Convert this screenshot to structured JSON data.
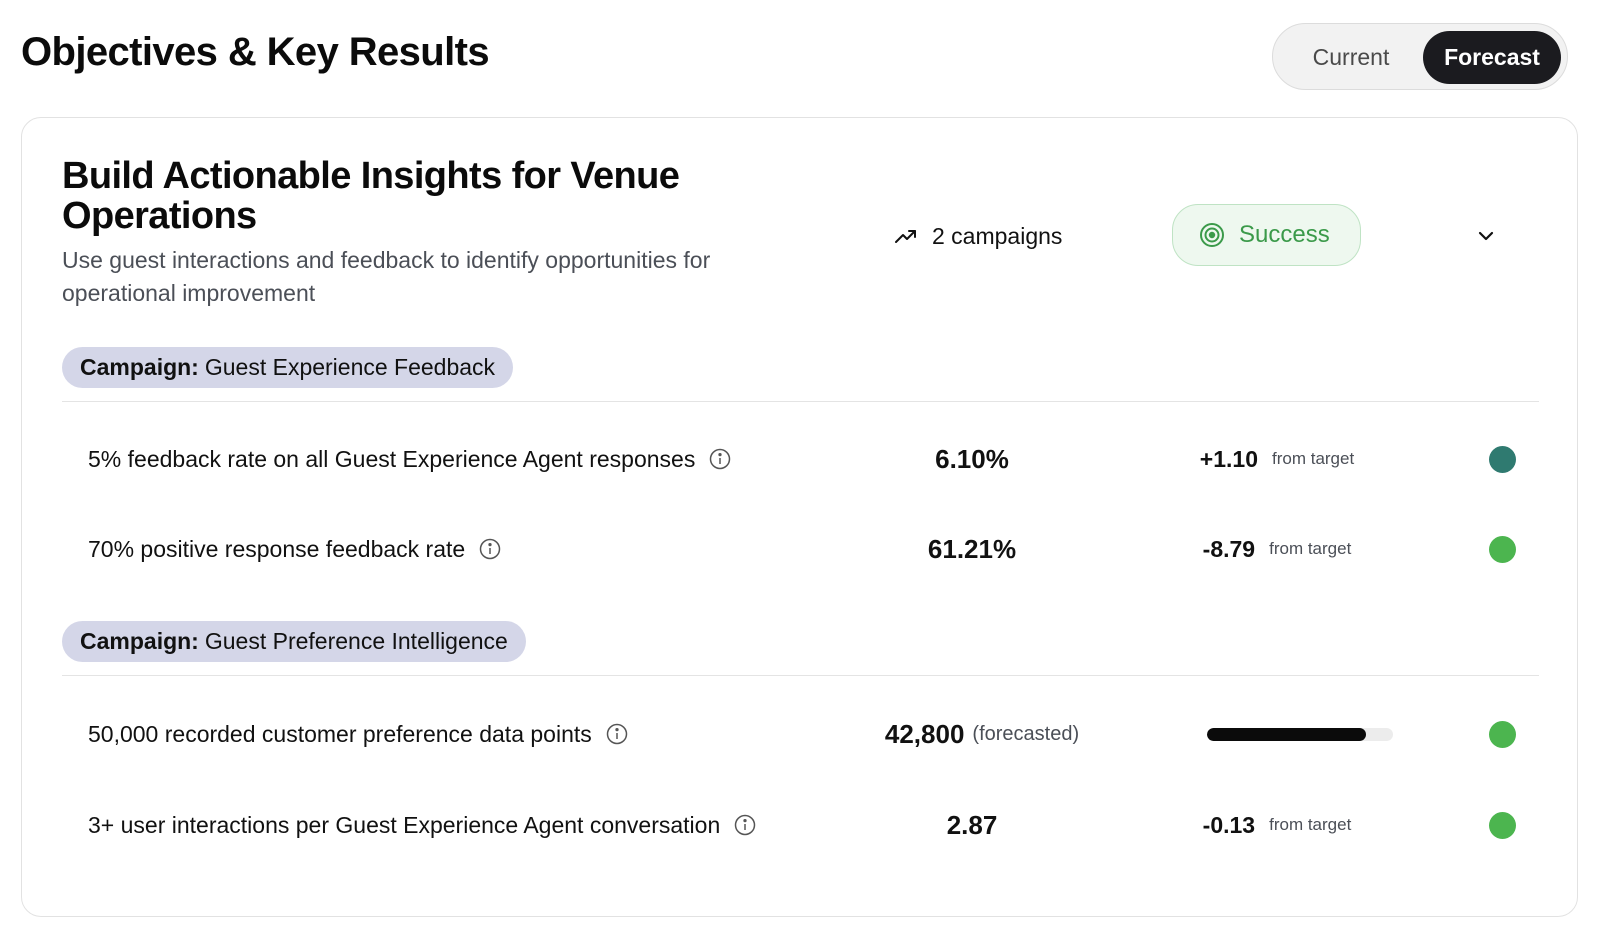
{
  "header": {
    "title": "Objectives & Key Results",
    "toggle": {
      "current_label": "Current",
      "forecast_label": "Forecast",
      "selected": "Forecast"
    }
  },
  "objective": {
    "title": "Build Actionable Insights for Venue Operations",
    "description": "Use guest interactions and feedback to identify opportunities for operational improvement",
    "campaigns_label": "2 campaigns",
    "campaigns_icon": "trending-up-icon",
    "status": {
      "label": "Success",
      "icon": "target-icon",
      "color": "#3b9a4a"
    },
    "expand_icon": "chevron-down-icon"
  },
  "campaigns": [
    {
      "prefix": "Campaign:",
      "name": "Guest Experience Feedback",
      "key_results": [
        {
          "label": "5% feedback rate on all Guest Experience Agent responses",
          "value": "6.10%",
          "delta": "+1.10",
          "delta_label": "from target",
          "status_color": "#2f7a70"
        },
        {
          "label": "70% positive response feedback rate",
          "value": "61.21%",
          "delta": "-8.79",
          "delta_label": "from target",
          "status_color": "#4cb54f"
        }
      ]
    },
    {
      "prefix": "Campaign:",
      "name": "Guest Preference Intelligence",
      "key_results": [
        {
          "label": "50,000 recorded customer preference data points",
          "value": "42,800",
          "value_note": "(forecasted)",
          "progress": 0.856,
          "status_color": "#4cb54f"
        },
        {
          "label": "3+ user interactions per Guest Experience Agent conversation",
          "value": "2.87",
          "delta": "-0.13",
          "delta_label": "from target",
          "status_color": "#4cb54f"
        }
      ]
    }
  ]
}
